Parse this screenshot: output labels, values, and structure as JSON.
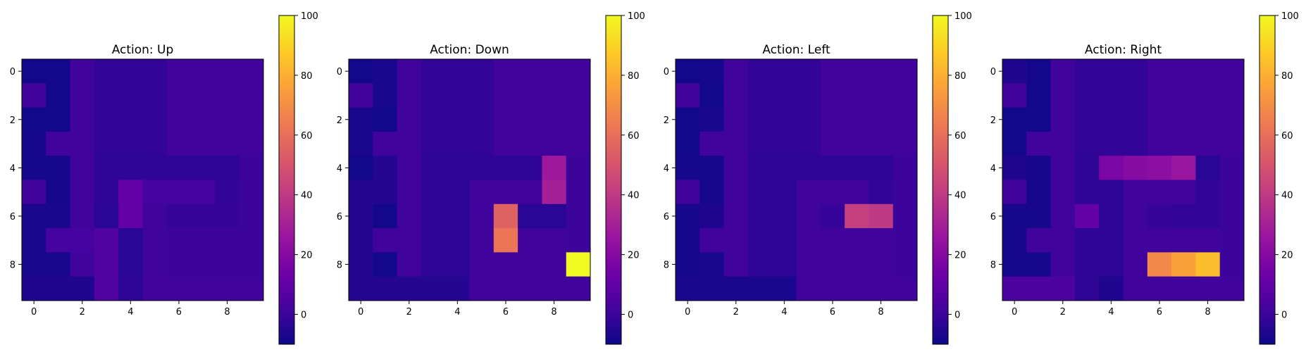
{
  "colormap": {
    "name": "plasma",
    "stops": [
      "#0d0887",
      "#46039f",
      "#7201a8",
      "#9c179e",
      "#bd3786",
      "#d8576b",
      "#ed7953",
      "#fb9f3a",
      "#fdca26",
      "#f0f921"
    ]
  },
  "colorbar": {
    "min": -10,
    "max": 100,
    "ticks": [
      0,
      20,
      40,
      60,
      80,
      100
    ]
  },
  "chart_data": [
    {
      "type": "heatmap",
      "title": "Action: Up",
      "xticks": [
        0,
        2,
        4,
        6,
        8
      ],
      "yticks": [
        0,
        2,
        4,
        6,
        8
      ],
      "values": [
        [
          -9,
          -9,
          1,
          -2,
          -2,
          -2,
          1,
          1,
          1,
          1
        ],
        [
          1,
          -9,
          1,
          -2,
          -2,
          -2,
          1,
          1,
          1,
          1
        ],
        [
          -9,
          -9,
          1,
          -2,
          -2,
          -2,
          1,
          1,
          1,
          1
        ],
        [
          -8,
          1,
          1,
          -2,
          -2,
          -2,
          1,
          1,
          1,
          1
        ],
        [
          -8,
          -8,
          1,
          -3,
          -3,
          -3,
          -3,
          -3,
          -3,
          0
        ],
        [
          1,
          -8,
          1,
          -3,
          10,
          2,
          2,
          2,
          -2,
          0
        ],
        [
          -7,
          -7,
          1,
          -4,
          10,
          1,
          -1,
          -1,
          -1,
          0
        ],
        [
          -7,
          2,
          2,
          5,
          -4,
          1,
          0,
          0,
          0,
          0
        ],
        [
          -7,
          -7,
          1,
          5,
          -4,
          1,
          0,
          0,
          0,
          0
        ],
        [
          -6,
          -6,
          -6,
          5,
          -3,
          1,
          1,
          1,
          1,
          1
        ]
      ]
    },
    {
      "type": "heatmap",
      "title": "Action: Down",
      "xticks": [
        0,
        2,
        4,
        6,
        8
      ],
      "yticks": [
        0,
        2,
        4,
        6,
        8
      ],
      "values": [
        [
          -9,
          -7,
          1,
          -2,
          -2,
          -2,
          1,
          1,
          1,
          1
        ],
        [
          1,
          -7,
          1,
          -2,
          -2,
          -2,
          1,
          1,
          1,
          1
        ],
        [
          -7,
          -9,
          1,
          -2,
          -2,
          -2,
          1,
          1,
          1,
          1
        ],
        [
          -7,
          1,
          1,
          -2,
          -2,
          -2,
          1,
          1,
          1,
          1
        ],
        [
          -9,
          -5,
          1,
          -3,
          -3,
          -3,
          -3,
          -3,
          27,
          0
        ],
        [
          -5,
          -5,
          1,
          -3,
          -3,
          1,
          1,
          1,
          30,
          0
        ],
        [
          -5,
          -9,
          1,
          -3,
          -3,
          1,
          55,
          -4,
          -4,
          0
        ],
        [
          -5,
          1,
          1,
          -3,
          -3,
          1,
          62,
          1,
          1,
          0
        ],
        [
          -5,
          -9,
          1,
          -3,
          -3,
          1,
          1,
          1,
          1,
          100
        ],
        [
          -5,
          -5,
          -5,
          -5,
          -5,
          1,
          1,
          1,
          1,
          1
        ]
      ]
    },
    {
      "type": "heatmap",
      "title": "Action: Left",
      "xticks": [
        0,
        2,
        4,
        6,
        8
      ],
      "yticks": [
        0,
        2,
        4,
        6,
        8
      ],
      "values": [
        [
          -9,
          -8,
          1,
          -2,
          -2,
          -2,
          1,
          1,
          1,
          1
        ],
        [
          1,
          -9,
          1,
          -2,
          -2,
          -2,
          1,
          1,
          1,
          1
        ],
        [
          -9,
          -7,
          1,
          -2,
          -2,
          -2,
          1,
          1,
          1,
          1
        ],
        [
          -9,
          1,
          1,
          -2,
          -2,
          -2,
          1,
          1,
          1,
          1
        ],
        [
          -8,
          -8,
          1,
          -3,
          -3,
          -3,
          -3,
          -3,
          -3,
          0
        ],
        [
          1,
          -8,
          1,
          -3,
          -3,
          1,
          1,
          1,
          -2,
          0
        ],
        [
          -8,
          -6,
          1,
          -3,
          -3,
          1,
          -1,
          42,
          40,
          0
        ],
        [
          -8,
          1,
          1,
          -3,
          -3,
          1,
          1,
          1,
          1,
          0
        ],
        [
          -8,
          -7,
          1,
          -3,
          -3,
          1,
          1,
          1,
          1,
          0
        ],
        [
          -7,
          -7,
          -7,
          -7,
          -7,
          1,
          1,
          1,
          1,
          1
        ]
      ]
    },
    {
      "type": "heatmap",
      "title": "Action: Right",
      "xticks": [
        0,
        2,
        4,
        6,
        8
      ],
      "yticks": [
        0,
        2,
        4,
        6,
        8
      ],
      "values": [
        [
          -6,
          -9,
          1,
          -2,
          -2,
          -2,
          1,
          1,
          1,
          1
        ],
        [
          1,
          -9,
          1,
          -2,
          -2,
          -2,
          1,
          1,
          1,
          1
        ],
        [
          -9,
          -9,
          1,
          -2,
          -2,
          -2,
          1,
          1,
          1,
          1
        ],
        [
          -9,
          1,
          1,
          -2,
          -2,
          -2,
          1,
          1,
          1,
          1
        ],
        [
          -6,
          -8,
          1,
          -3,
          17,
          20,
          22,
          26,
          -4,
          0
        ],
        [
          1,
          -8,
          1,
          -3,
          -3,
          1,
          1,
          1,
          -2,
          0
        ],
        [
          -8,
          -8,
          1,
          10,
          -3,
          1,
          -1,
          -2,
          -2,
          0
        ],
        [
          -8,
          1,
          1,
          -3,
          -3,
          1,
          1,
          1,
          1,
          0
        ],
        [
          -8,
          -8,
          1,
          -3,
          -3,
          1,
          68,
          76,
          84,
          0
        ],
        [
          4,
          4,
          4,
          -3,
          -6,
          1,
          1,
          1,
          1,
          1
        ]
      ]
    }
  ]
}
